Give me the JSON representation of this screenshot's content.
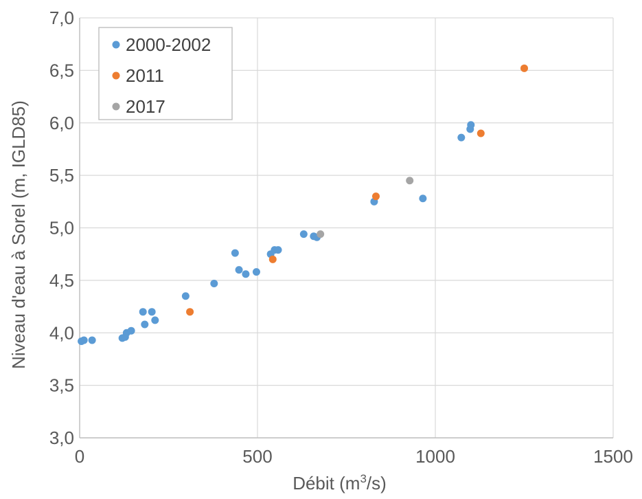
{
  "chart_data": {
    "type": "scatter",
    "title": "",
    "xlabel": "Débit (m³/s)",
    "xlabel_parts": {
      "base": "Débit (m",
      "sup": "3",
      "tail": "/s)"
    },
    "ylabel": "Niveau d'eau à Sorel (m, IGLD85)",
    "xlim": [
      0,
      1500
    ],
    "ylim": [
      3.0,
      7.0
    ],
    "x_ticks": [
      0,
      500,
      1000,
      1500
    ],
    "x_tick_labels": [
      "0",
      "500",
      "1000",
      "1500"
    ],
    "y_ticks": [
      3.0,
      3.5,
      4.0,
      4.5,
      5.0,
      5.5,
      6.0,
      6.5,
      7.0
    ],
    "y_tick_labels": [
      "3,0",
      "3,5",
      "4,0",
      "4,5",
      "5,0",
      "5,5",
      "6,0",
      "6,5",
      "7,0"
    ],
    "grid": true,
    "legend_position": "top-left",
    "series": [
      {
        "name": "2000-2002",
        "color": "#5b9bd5",
        "points": [
          [
            5,
            3.92
          ],
          [
            12,
            3.93
          ],
          [
            35,
            3.93
          ],
          [
            120,
            3.95
          ],
          [
            128,
            3.96
          ],
          [
            132,
            4.0
          ],
          [
            145,
            4.02
          ],
          [
            178,
            4.2
          ],
          [
            183,
            4.08
          ],
          [
            203,
            4.2
          ],
          [
            212,
            4.12
          ],
          [
            298,
            4.35
          ],
          [
            378,
            4.47
          ],
          [
            437,
            4.76
          ],
          [
            448,
            4.6
          ],
          [
            467,
            4.56
          ],
          [
            497,
            4.58
          ],
          [
            537,
            4.75
          ],
          [
            548,
            4.79
          ],
          [
            558,
            4.79
          ],
          [
            630,
            4.94
          ],
          [
            658,
            4.92
          ],
          [
            667,
            4.91
          ],
          [
            828,
            5.25
          ],
          [
            965,
            5.28
          ],
          [
            1073,
            5.86
          ],
          [
            1098,
            5.94
          ],
          [
            1100,
            5.98
          ]
        ]
      },
      {
        "name": "2011",
        "color": "#ed7d31",
        "points": [
          [
            310,
            4.2
          ],
          [
            543,
            4.7
          ],
          [
            833,
            5.3
          ],
          [
            1128,
            5.9
          ],
          [
            1250,
            6.52
          ]
        ]
      },
      {
        "name": "2017",
        "color": "#a5a5a5",
        "points": [
          [
            677,
            4.94
          ],
          [
            928,
            5.45
          ]
        ]
      }
    ]
  }
}
